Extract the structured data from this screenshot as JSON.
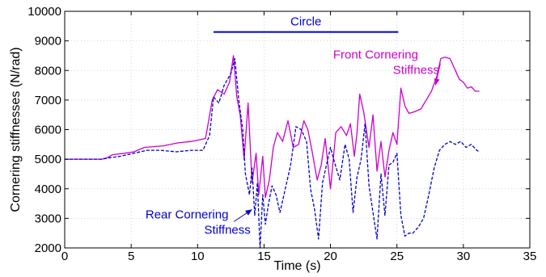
{
  "chart_data": {
    "type": "line",
    "title": "",
    "xlabel": "Time (s)",
    "ylabel": "Cornering stiffnesses (N/rad)",
    "xlim": [
      0,
      35
    ],
    "ylim": [
      2000,
      10000
    ],
    "xticks": [
      0,
      5,
      10,
      15,
      20,
      25,
      30,
      35
    ],
    "yticks": [
      2000,
      3000,
      4000,
      5000,
      6000,
      7000,
      8000,
      9000,
      10000
    ],
    "xtick_labels": [
      "0",
      "5",
      "10",
      "15",
      "20",
      "25",
      "30",
      "35"
    ],
    "ytick_labels": [
      "2000",
      "3000",
      "4000",
      "5000",
      "6000",
      "7000",
      "8000",
      "9000",
      "10000"
    ],
    "grid": true,
    "series": [
      {
        "name": "Front Cornering Stiffness",
        "color": "#cc00cc",
        "style": "solid",
        "x": [
          0,
          2.8,
          3.2,
          3.6,
          4.5,
          5.2,
          6,
          7.4,
          8.5,
          9.5,
          10.6,
          11.1,
          11.5,
          12,
          12.4,
          12.7,
          12.95,
          13.2,
          13.5,
          13.8,
          14.1,
          14.4,
          14.6,
          14.9,
          15.1,
          15.4,
          15.7,
          16,
          16.4,
          16.8,
          17.2,
          17.6,
          18,
          18.3,
          18.6,
          19,
          19.3,
          19.6,
          20,
          20.4,
          20.8,
          21.2,
          21.5,
          21.8,
          22,
          22.2,
          22.5,
          22.9,
          23.2,
          23.5,
          23.8,
          24.1,
          24.4,
          24.7,
          25,
          25.3,
          25.6,
          25.9,
          26.3,
          26.8,
          27.2,
          27.6,
          28,
          28.3,
          28.6,
          29,
          29.4,
          29.7,
          30,
          30.3,
          30.6,
          30.9,
          31.2
        ],
        "y": [
          5000,
          5000,
          5050,
          5150,
          5200,
          5250,
          5400,
          5450,
          5550,
          5600,
          5700,
          7000,
          7350,
          7200,
          7600,
          8500,
          7100,
          6500,
          5000,
          6900,
          4200,
          5200,
          3800,
          5100,
          3700,
          4300,
          5400,
          5900,
          5600,
          6300,
          5400,
          5500,
          6300,
          6000,
          5300,
          4300,
          4800,
          5700,
          4000,
          5900,
          6100,
          5800,
          6200,
          5100,
          5900,
          7200,
          6600,
          5400,
          6500,
          4600,
          5600,
          4400,
          5300,
          5900,
          5500,
          7400,
          6800,
          6550,
          6600,
          6700,
          7000,
          7300,
          7800,
          8400,
          8450,
          8400,
          8000,
          7700,
          7600,
          7400,
          7450,
          7300,
          7300
        ]
      },
      {
        "name": "Rear Cornering Stiffness",
        "color": "#0000cc",
        "style": "dashed",
        "x": [
          0,
          2.8,
          3.4,
          4.2,
          5.2,
          6.2,
          7.2,
          8.4,
          9.5,
          10.4,
          10.9,
          11.2,
          11.6,
          12,
          12.5,
          12.8,
          13.1,
          13.4,
          13.6,
          13.9,
          14.1,
          14.3,
          14.5,
          14.7,
          14.9,
          15.1,
          15.3,
          15.6,
          15.9,
          16.2,
          16.6,
          17,
          17.4,
          17.8,
          18.2,
          18.5,
          18.8,
          19.1,
          19.4,
          19.7,
          20,
          20.3,
          20.7,
          21.1,
          21.4,
          21.7,
          22,
          22.3,
          22.6,
          22.9,
          23.2,
          23.5,
          23.8,
          24.1,
          24.4,
          24.7,
          25,
          25.3,
          25.6,
          25.9,
          26.2,
          26.6,
          27,
          27.4,
          27.8,
          28.2,
          28.6,
          29,
          29.4,
          29.8,
          30.2,
          30.6,
          31,
          31.2
        ],
        "y": [
          5000,
          5000,
          5050,
          5100,
          5200,
          5300,
          5300,
          5250,
          5300,
          5300,
          5800,
          7100,
          6900,
          7500,
          7900,
          8400,
          7000,
          6000,
          4500,
          3800,
          4700,
          3100,
          4200,
          2000,
          3800,
          2800,
          3400,
          4100,
          3800,
          3200,
          4000,
          4800,
          6100,
          6000,
          5600,
          4000,
          3300,
          2300,
          4200,
          4800,
          5400,
          4900,
          4300,
          5500,
          5000,
          3200,
          4400,
          5000,
          6200,
          4100,
          3200,
          2300,
          4500,
          3100,
          4800,
          4900,
          5200,
          3100,
          2400,
          2500,
          2500,
          2700,
          3000,
          3800,
          4700,
          5300,
          5500,
          5600,
          5500,
          5600,
          5400,
          5500,
          5300,
          5250
        ]
      }
    ],
    "circle_bar": {
      "label": "Circle",
      "x_start": 11.2,
      "x_end": 25.1,
      "y": 9300,
      "color": "#0000cc"
    },
    "annotations": [
      {
        "lines": [
          "Front Cornering",
          "Stiffness"
        ],
        "color": "#cc00cc",
        "x": 23.4,
        "y": 8400,
        "arrow_to": [
          27.9,
          7500
        ]
      },
      {
        "lines": [
          "Rear Cornering",
          "Stiffness"
        ],
        "color": "#0000cc",
        "x": 9.2,
        "y": 3000,
        "arrow_to": [
          14.1,
          3300
        ]
      }
    ]
  }
}
